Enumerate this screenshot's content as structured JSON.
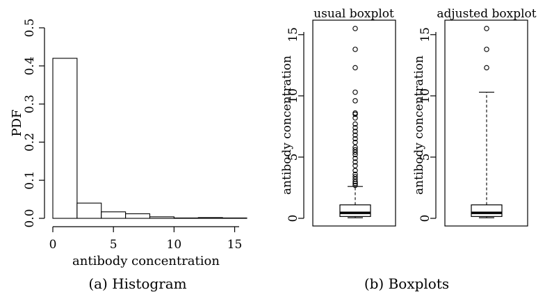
{
  "chart_data": [
    {
      "type": "bar",
      "xlabel": "antibody concentration",
      "ylabel": "PDF",
      "xlim": [
        0,
        16
      ],
      "ylim": [
        0,
        0.5
      ],
      "x_ticks": [
        "0",
        "5",
        "10",
        "15"
      ],
      "y_ticks": [
        "0.0",
        "0.1",
        "0.2",
        "0.3",
        "0.4",
        "0.5"
      ],
      "bins": [
        {
          "x0": 0,
          "x1": 2,
          "value": 0.42
        },
        {
          "x0": 2,
          "x1": 4,
          "value": 0.04
        },
        {
          "x0": 4,
          "x1": 6,
          "value": 0.017
        },
        {
          "x0": 6,
          "x1": 8,
          "value": 0.012
        },
        {
          "x0": 8,
          "x1": 10,
          "value": 0.004
        },
        {
          "x0": 10,
          "x1": 12,
          "value": 0.001
        },
        {
          "x0": 12,
          "x1": 14,
          "value": 0.002
        },
        {
          "x0": 14,
          "x1": 16,
          "value": 0.001
        }
      ],
      "caption": "(a) Histogram"
    },
    {
      "type": "boxplot",
      "title": "usual boxplot",
      "ylabel": "antibody concentration",
      "ylim": [
        0,
        15.5
      ],
      "y_ticks": [
        "0",
        "5",
        "10",
        "15"
      ],
      "box": {
        "min": 0.05,
        "q1": 0.15,
        "median": 0.45,
        "q3": 1.1,
        "whisker_low": 0.05,
        "whisker_high": 2.6
      },
      "outliers": [
        15.5,
        13.8,
        12.3,
        10.3,
        9.6,
        8.6,
        8.5,
        8.2,
        7.7,
        7.4,
        7.1,
        6.8,
        6.5,
        6.2,
        5.8,
        5.6,
        5.4,
        5.2,
        4.9,
        4.6,
        4.3,
        3.9,
        3.6,
        3.4,
        3.2,
        3.0,
        2.85,
        2.7
      ]
    },
    {
      "type": "boxplot",
      "title": "adjusted boxplot",
      "ylabel": "antibody concentration",
      "ylim": [
        0,
        15.5
      ],
      "y_ticks": [
        "0",
        "5",
        "10",
        "15"
      ],
      "box": {
        "min": 0.05,
        "q1": 0.15,
        "median": 0.45,
        "q3": 1.1,
        "whisker_low": 0.05,
        "whisker_high": 10.3
      },
      "outliers": [
        15.5,
        13.8,
        12.3
      ]
    }
  ],
  "caption_b": "(b) Boxplots"
}
